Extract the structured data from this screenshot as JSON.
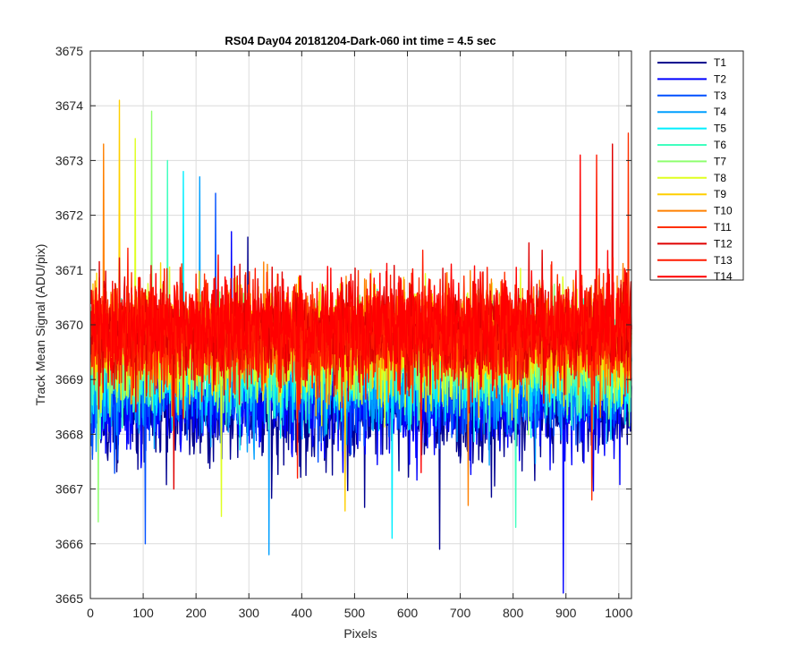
{
  "chart_data": {
    "type": "line",
    "title": "RS04 Day04 20181204-Dark-060 int time = 4.5 sec",
    "xlabel": "Pixels",
    "ylabel": "Track Mean Signal (ADU/pix)",
    "xlim": [
      0,
      1024
    ],
    "ylim": [
      3665,
      3675
    ],
    "xticks": [
      0,
      100,
      200,
      300,
      400,
      500,
      600,
      700,
      800,
      900,
      1000
    ],
    "yticks": [
      3665,
      3666,
      3667,
      3668,
      3669,
      3670,
      3671,
      3672,
      3673,
      3674,
      3675
    ],
    "grid": true,
    "legend_position": "outside-top-right",
    "x_range": [
      1,
      1024
    ],
    "series": [
      {
        "name": "T1",
        "color": "#00008f",
        "mean": 3668.4,
        "spread": 0.85,
        "min": 3665.9,
        "max": 3671.6
      },
      {
        "name": "T2",
        "color": "#0000ff",
        "mean": 3668.6,
        "spread": 0.85,
        "min": 3665.1,
        "max": 3671.7
      },
      {
        "name": "T3",
        "color": "#0050ff",
        "mean": 3668.9,
        "spread": 0.85,
        "min": 3666.0,
        "max": 3672.4
      },
      {
        "name": "T4",
        "color": "#009fff",
        "mean": 3669.0,
        "spread": 0.85,
        "min": 3665.8,
        "max": 3672.7
      },
      {
        "name": "T5",
        "color": "#00efff",
        "mean": 3669.2,
        "spread": 0.85,
        "min": 3666.1,
        "max": 3672.8
      },
      {
        "name": "T6",
        "color": "#40ffbf",
        "mean": 3669.3,
        "spread": 0.85,
        "min": 3666.3,
        "max": 3673.0
      },
      {
        "name": "T7",
        "color": "#8fff70",
        "mean": 3669.5,
        "spread": 0.85,
        "min": 3666.4,
        "max": 3673.9
      },
      {
        "name": "T8",
        "color": "#dfff20",
        "mean": 3669.6,
        "spread": 0.85,
        "min": 3666.5,
        "max": 3673.4
      },
      {
        "name": "T9",
        "color": "#ffcf00",
        "mean": 3669.7,
        "spread": 0.85,
        "min": 3666.6,
        "max": 3674.1
      },
      {
        "name": "T10",
        "color": "#ff8000",
        "mean": 3669.8,
        "spread": 0.85,
        "min": 3666.7,
        "max": 3673.3
      },
      {
        "name": "T11",
        "color": "#ff3000",
        "mean": 3669.8,
        "spread": 0.85,
        "min": 3666.8,
        "max": 3673.5
      },
      {
        "name": "T12",
        "color": "#df0000",
        "mean": 3669.9,
        "spread": 0.85,
        "min": 3667.0,
        "max": 3673.3
      },
      {
        "name": "T13",
        "color": "#ff1a00",
        "mean": 3669.9,
        "spread": 0.8,
        "min": 3667.2,
        "max": 3673.1
      },
      {
        "name": "T14",
        "color": "#ff0000",
        "mean": 3670.0,
        "spread": 0.8,
        "min": 3667.3,
        "max": 3673.1
      }
    ]
  }
}
